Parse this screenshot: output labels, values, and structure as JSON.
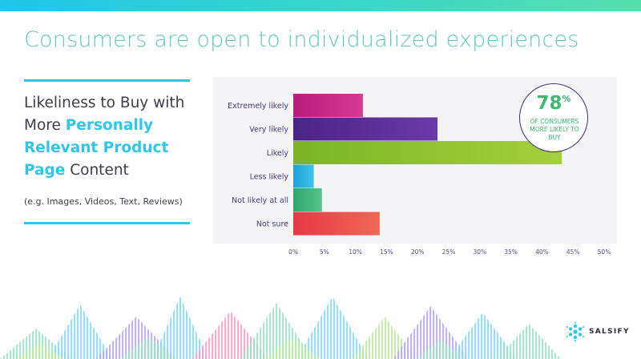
{
  "header": {
    "title": "Consumers are open to individualized experiences"
  },
  "left_panel": {
    "subtitle_plain_1": "Likeliness to Buy with More ",
    "subtitle_highlight": "Personally Relevant Product Page",
    "subtitle_plain_2": " Content",
    "note": "(e.g. Images, Videos, Text, Reviews)"
  },
  "badge": {
    "value": "78",
    "unit": "%",
    "text": "OF CONSUMERS MORE LIKELY TO BUY"
  },
  "brand": {
    "name": "SALSIFY"
  },
  "colors": {
    "accent_cyan": "#2ec6ea",
    "title_teal": "#5ec8bc",
    "badge_green": "#3fb872"
  },
  "chart_data": {
    "type": "bar",
    "orientation": "horizontal",
    "categories": [
      "Extremely likely",
      "Very likely",
      "Likely",
      "Less likely",
      "Not likely at all",
      "Not sure"
    ],
    "values": [
      11.2,
      23.2,
      43.2,
      3.3,
      4.6,
      13.9
    ],
    "bar_colors": [
      [
        "#b51e7a",
        "#d63a92"
      ],
      [
        "#4b2486",
        "#6a3aa6"
      ],
      [
        "#7bb526",
        "#a6cf3c"
      ],
      [
        "#1fa0d6",
        "#3fc2ea"
      ],
      [
        "#2fa76a",
        "#55c48c"
      ],
      [
        "#e63845",
        "#f06855"
      ]
    ],
    "x_ticks": [
      "0%",
      "5%",
      "10%",
      "15%",
      "20%",
      "25%",
      "30%",
      "35%",
      "40%",
      "45%",
      "50%"
    ],
    "xlim": [
      0,
      50
    ],
    "grid": false
  }
}
